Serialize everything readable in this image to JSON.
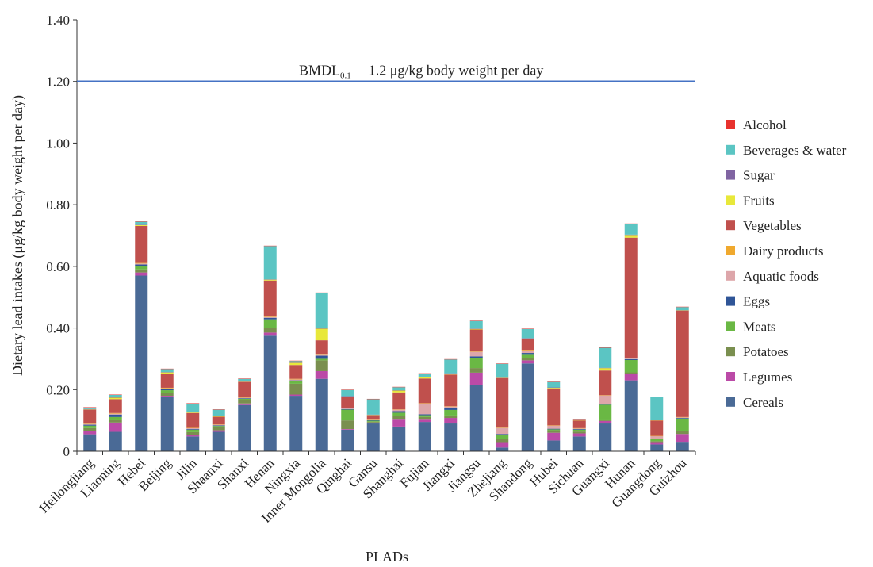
{
  "chart_data": {
    "type": "bar",
    "stacked": true,
    "xlabel": "PLADs",
    "ylabel": "Dietary lead intakes (μg/kg body weight per day)",
    "ylim": [
      0,
      1.4
    ],
    "yticks": [
      "0",
      "0.20",
      "0.40",
      "0.60",
      "0.80",
      "1.00",
      "1.20",
      "1.40"
    ],
    "yticks_values": [
      0,
      0.2,
      0.4,
      0.6,
      0.8,
      1.0,
      1.2,
      1.4
    ],
    "grid": false,
    "legend_position": "right",
    "reference_line": {
      "value": 1.2,
      "label_main": "BMDL",
      "label_sub": "0.1",
      "label_text": "1.2 μg/kg body weight per day",
      "color": "#4472C4"
    },
    "categories": [
      "Heilongjiang",
      "Liaoning",
      "Hebei",
      "Beijing",
      "Jilin",
      "Shaanxi",
      "Shanxi",
      "Henan",
      "Ningxia",
      "Inner Mongolia",
      "Qinghai",
      "Gansu",
      "Shanghai",
      "Fujian",
      "Jiangxi",
      "Jiangsu",
      "Zhejiang",
      "Shandong",
      "Hubei",
      "Sichuan",
      "Guangxi",
      "Hunan",
      "Guangdong",
      "Guizhou"
    ],
    "series": [
      {
        "name": "Cereals",
        "color": "#4A6A96",
        "values": [
          0.055,
          0.063,
          0.57,
          0.175,
          0.048,
          0.063,
          0.15,
          0.375,
          0.18,
          0.235,
          0.07,
          0.09,
          0.08,
          0.095,
          0.09,
          0.215,
          0.012,
          0.285,
          0.035,
          0.048,
          0.09,
          0.23,
          0.022,
          0.028
        ]
      },
      {
        "name": "Legumes",
        "color": "#BB4AA7",
        "values": [
          0.01,
          0.03,
          0.01,
          0.005,
          0.006,
          0.005,
          0.005,
          0.01,
          0.004,
          0.025,
          0.002,
          0.003,
          0.025,
          0.01,
          0.018,
          0.04,
          0.015,
          0.01,
          0.025,
          0.01,
          0.008,
          0.02,
          0.005,
          0.028
        ]
      },
      {
        "name": "Potatoes",
        "color": "#7A8F4F",
        "values": [
          0.01,
          0.01,
          0.01,
          0.01,
          0.008,
          0.01,
          0.01,
          0.015,
          0.035,
          0.035,
          0.028,
          0.003,
          0.01,
          0.006,
          0.008,
          0.015,
          0.012,
          0.008,
          0.008,
          0.006,
          0.005,
          0.006,
          0.006,
          0.01
        ]
      },
      {
        "name": "Meats",
        "color": "#6AB844",
        "values": [
          0.008,
          0.008,
          0.012,
          0.008,
          0.008,
          0.004,
          0.005,
          0.028,
          0.008,
          0.005,
          0.035,
          0.003,
          0.01,
          0.006,
          0.018,
          0.032,
          0.015,
          0.01,
          0.003,
          0.006,
          0.048,
          0.04,
          0.006,
          0.04
        ]
      },
      {
        "name": "Eggs",
        "color": "#2F5597",
        "values": [
          0.003,
          0.008,
          0.004,
          0.003,
          0.002,
          0.002,
          0.002,
          0.005,
          0.003,
          0.01,
          0.002,
          0.002,
          0.005,
          0.003,
          0.006,
          0.006,
          0.002,
          0.006,
          0.002,
          0.002,
          0.002,
          0.003,
          0.002,
          0.002
        ]
      },
      {
        "name": "Aquatic foods",
        "color": "#DDA6AA",
        "values": [
          0.003,
          0.003,
          0.003,
          0.003,
          0.003,
          0.002,
          0.002,
          0.003,
          0.003,
          0.003,
          0.003,
          0.003,
          0.005,
          0.035,
          0.005,
          0.015,
          0.02,
          0.008,
          0.01,
          0.002,
          0.028,
          0.002,
          0.008,
          0.002
        ]
      },
      {
        "name": "Dairy products",
        "color": "#F0A92E",
        "values": [
          0.001,
          0.002,
          0.002,
          0.002,
          0.001,
          0.001,
          0.001,
          0.003,
          0.002,
          0.002,
          0.001,
          0.001,
          0.001,
          0.001,
          0.001,
          0.002,
          0.001,
          0.002,
          0.001,
          0.001,
          0.001,
          0.002,
          0.001,
          0.001
        ]
      },
      {
        "name": "Vegetables",
        "color": "#C0504D",
        "values": [
          0.045,
          0.045,
          0.12,
          0.045,
          0.048,
          0.025,
          0.05,
          0.115,
          0.045,
          0.045,
          0.035,
          0.012,
          0.055,
          0.08,
          0.103,
          0.07,
          0.16,
          0.035,
          0.12,
          0.025,
          0.08,
          0.39,
          0.05,
          0.345
        ]
      },
      {
        "name": "Fruits",
        "color": "#E8E83A",
        "values": [
          0.001,
          0.005,
          0.003,
          0.005,
          0.002,
          0.002,
          0.001,
          0.003,
          0.007,
          0.038,
          0.002,
          0.001,
          0.006,
          0.005,
          0.003,
          0.002,
          0.001,
          0.002,
          0.002,
          0.001,
          0.008,
          0.009,
          0.001,
          0.001
        ]
      },
      {
        "name": "Sugar",
        "color": "#8064A2",
        "values": [
          0.001,
          0.001,
          0.001,
          0.001,
          0.001,
          0.001,
          0.001,
          0.001,
          0.001,
          0.001,
          0.001,
          0.001,
          0.001,
          0.001,
          0.001,
          0.001,
          0.001,
          0.001,
          0.001,
          0.001,
          0.001,
          0.001,
          0.001,
          0.001
        ]
      },
      {
        "name": "Beverages & water",
        "color": "#5BC5C3",
        "values": [
          0.005,
          0.008,
          0.01,
          0.01,
          0.028,
          0.02,
          0.008,
          0.108,
          0.005,
          0.115,
          0.02,
          0.05,
          0.01,
          0.01,
          0.045,
          0.025,
          0.045,
          0.03,
          0.018,
          0.002,
          0.065,
          0.035,
          0.074,
          0.01
        ]
      },
      {
        "name": "Alcohol",
        "color": "#E8322E",
        "values": [
          0.001,
          0.001,
          0.001,
          0.001,
          0.001,
          0.001,
          0.001,
          0.001,
          0.001,
          0.001,
          0.001,
          0.001,
          0.001,
          0.001,
          0.001,
          0.001,
          0.001,
          0.001,
          0.001,
          0.001,
          0.001,
          0.001,
          0.001,
          0.001
        ]
      }
    ]
  }
}
